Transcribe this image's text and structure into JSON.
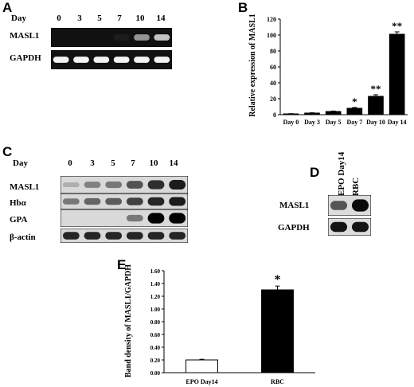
{
  "panelA": {
    "letter": "A",
    "day_label": "Day",
    "days": [
      "0",
      "3",
      "5",
      "7",
      "10",
      "14"
    ],
    "rows": [
      "MASL1",
      "GAPDH"
    ],
    "intensity": {
      "MASL1": [
        0,
        0,
        0,
        0.05,
        0.55,
        0.75
      ],
      "GAPDH": [
        0.95,
        0.95,
        0.95,
        0.95,
        0.95,
        0.95
      ]
    }
  },
  "panelB": {
    "letter": "B",
    "chart_data": {
      "type": "bar",
      "categories": [
        "Day 0",
        "Day 3",
        "Day 5",
        "Day 7",
        "Day 10",
        "Day 14"
      ],
      "values": [
        1,
        2,
        4,
        8,
        23,
        101
      ],
      "errors": [
        0.3,
        0.4,
        0.6,
        1,
        2,
        3
      ],
      "significance": [
        "",
        "",
        "",
        "*",
        "**",
        "**"
      ],
      "ylabel": "Relative expression of MASL1",
      "xlabel": "",
      "ylim": [
        0,
        120
      ],
      "yticks": [
        "0",
        "20",
        "40",
        "60",
        "80",
        "100",
        "120"
      ],
      "bar_color": "#000000"
    }
  },
  "panelC": {
    "letter": "C",
    "day_label": "Day",
    "days": [
      "0",
      "3",
      "5",
      "7",
      "10",
      "14"
    ],
    "rows": [
      "MASL1",
      "Hbα",
      "GPA",
      "β-actin"
    ],
    "intensity": {
      "MASL1": [
        0.05,
        0.3,
        0.35,
        0.55,
        0.75,
        0.85
      ],
      "Hbα": [
        0.35,
        0.45,
        0.5,
        0.65,
        0.8,
        0.85
      ],
      "GPA": [
        0,
        0,
        0,
        0.35,
        1,
        1
      ],
      "β-actin": [
        0.8,
        0.8,
        0.8,
        0.8,
        0.8,
        0.8
      ]
    }
  },
  "panelD": {
    "letter": "D",
    "lanes": [
      "EPO Day14",
      "RBC"
    ],
    "rows": [
      "MASL1",
      "GAPDH"
    ],
    "intensity": {
      "MASL1": [
        0.55,
        0.95
      ],
      "GAPDH": [
        0.9,
        0.9
      ]
    }
  },
  "panelE": {
    "letter": "E",
    "chart_data": {
      "type": "bar",
      "categories": [
        "EPO Day14",
        "RBC"
      ],
      "values": [
        0.2,
        1.3
      ],
      "errors": [
        0.01,
        0.06
      ],
      "significance": [
        "",
        "*"
      ],
      "bar_fill": [
        "#ffffff",
        "#000000"
      ],
      "ylabel": "Band density of MASL1/GAPDH",
      "xlabel": "",
      "ylim": [
        0,
        1.6
      ],
      "yticks": [
        "0.00",
        "0.20",
        "0.40",
        "0.60",
        "0.80",
        "1.00",
        "1.20",
        "1.40",
        "1.60"
      ]
    }
  }
}
